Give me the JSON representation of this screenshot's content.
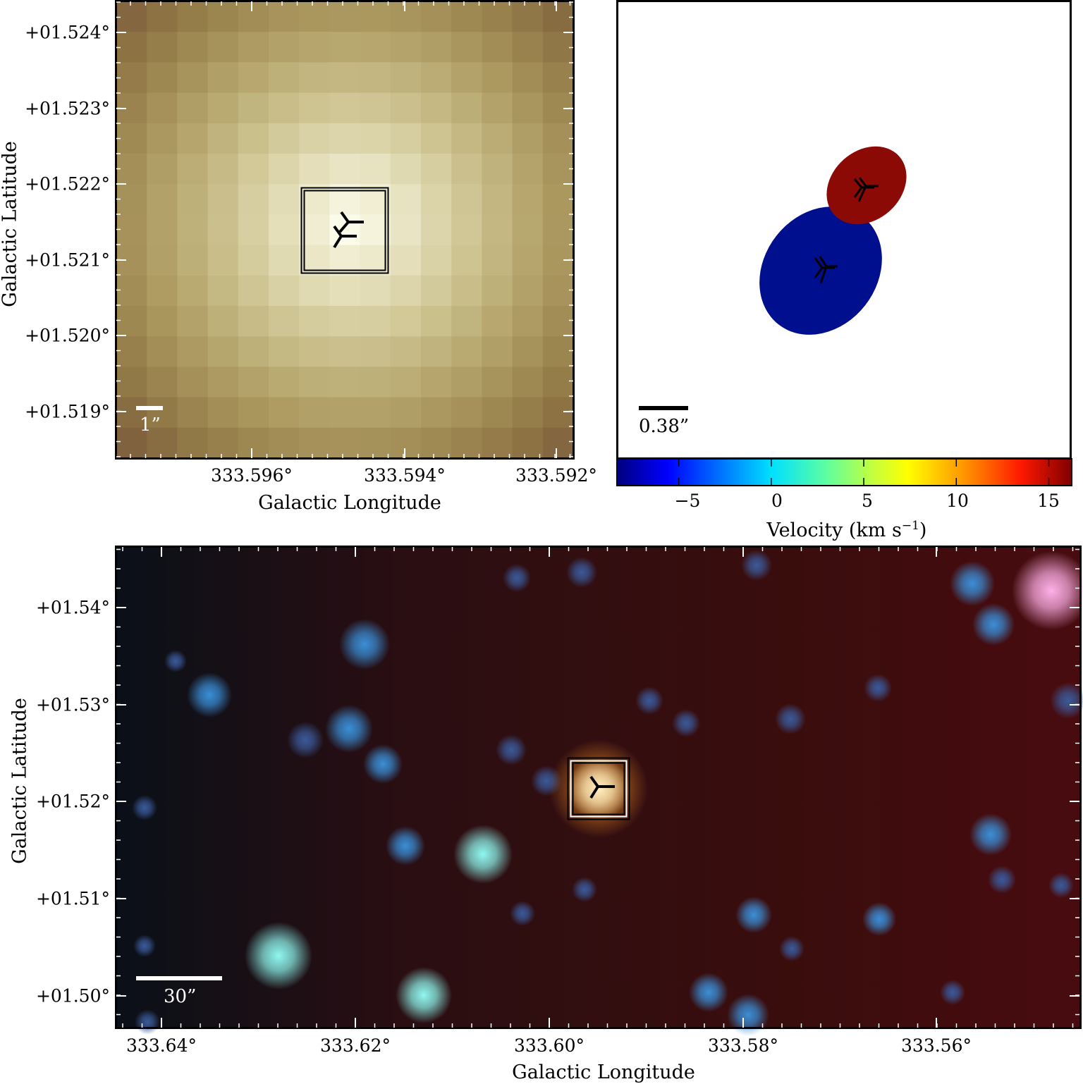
{
  "panels": {
    "top_left": {
      "x_axis_title": "Galactic Longitude",
      "y_axis_title": "Galactic Latitude",
      "x_ticks": [
        "333.596°",
        "333.594°",
        "333.592°"
      ],
      "y_ticks": [
        "+01.524°",
        "+01.523°",
        "+01.522°",
        "+01.521°",
        "+01.520°",
        "+01.519°"
      ],
      "scale_bar_label": "1”"
    },
    "top_right": {
      "scale_bar_label": "0.38”",
      "colorbar_title": "Velocity (km s",
      "colorbar_title_sup": "−1",
      "colorbar_title_end": ")",
      "colorbar_ticks": [
        "−5",
        "0",
        "5",
        "10",
        "15"
      ],
      "colorbar_range": [
        -8.3,
        16.2
      ],
      "sources": [
        {
          "name": "blue-component",
          "velocity_kms": -8,
          "color": "#000f8e"
        },
        {
          "name": "red-component",
          "velocity_kms": 16,
          "color": "#8c0a06"
        }
      ]
    },
    "bottom": {
      "x_axis_title": "Galactic Longitude",
      "y_axis_title": "Galactic Latitude",
      "x_ticks": [
        "333.64°",
        "333.62°",
        "333.60°",
        "333.58°",
        "333.56°"
      ],
      "y_ticks": [
        "+01.54°",
        "+01.53°",
        "+01.52°",
        "+01.51°",
        "+01.50°"
      ],
      "scale_bar_label": "30”"
    }
  }
}
